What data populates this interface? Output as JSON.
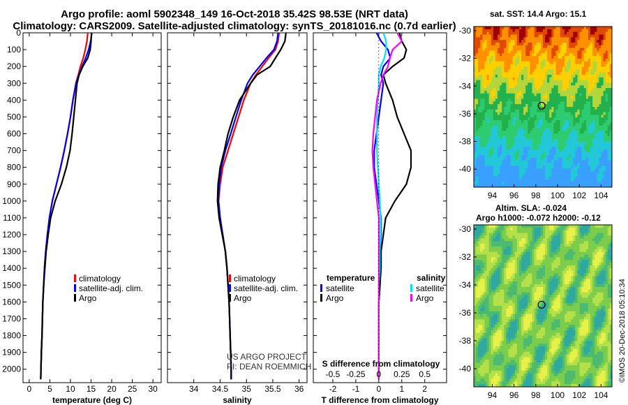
{
  "header": {
    "title_line1": "Argo profile: aoml 5902348_149 16-Oct-2018 35.42S 98.53E (NRT data)",
    "title_line2": "Climatology: CARS2009. Satellite-adjusted climatology: synTS_20181016.nc (0.7d earlier)"
  },
  "sst_map": {
    "title": "sat. SST: 14.4 Argo: 15.1",
    "lon_ticks": [
      "94",
      "96",
      "98",
      "100",
      "102",
      "104"
    ],
    "lat_ticks": [
      "-30",
      "-32",
      "-34",
      "-36",
      "-38",
      "-40"
    ],
    "marker": {
      "lon": 98.53,
      "lat": -35.42
    }
  },
  "sla_map": {
    "title_line1": "Altim. SLA: -0.024",
    "title_line2": "Argo h1000: -0.072 h2000: -0.12",
    "lon_ticks": [
      "94",
      "96",
      "98",
      "100",
      "102",
      "104"
    ],
    "lat_ticks": [
      "-30",
      "-32",
      "-34",
      "-36",
      "-38",
      "-40"
    ],
    "marker": {
      "lon": 98.53,
      "lat": -35.42
    }
  },
  "credit": "©IMOS 20-Dec-2018 05:10:34",
  "colors": {
    "climatology": "#ff0000",
    "satellite": "#0000ff",
    "argo": "#000000",
    "sal_satellite": "#00e0ff",
    "sal_argo": "#ff00ff"
  },
  "chart_data": [
    {
      "type": "line",
      "xlabel": "temperature (deg C)",
      "ylabel": "",
      "xlim": [
        -1.5,
        32
      ],
      "ylim": [
        0,
        2080
      ],
      "xticks": [
        "0",
        "5",
        "10",
        "15",
        "20",
        "25",
        "30"
      ],
      "yticks": [
        "0",
        "100",
        "200",
        "300",
        "400",
        "500",
        "600",
        "700",
        "800",
        "900",
        "1000",
        "1100",
        "1200",
        "1300",
        "1400",
        "1500",
        "1600",
        "1700",
        "1800",
        "1900",
        "2000"
      ],
      "depth": [
        0,
        50,
        100,
        150,
        200,
        250,
        300,
        400,
        500,
        600,
        700,
        800,
        900,
        1000,
        1100,
        1200,
        1300,
        1400,
        1500,
        1600,
        1700,
        1800,
        1900,
        2000,
        2060
      ],
      "series": [
        {
          "name": "climatology",
          "values": [
            14.2,
            14.0,
            13.6,
            13.1,
            12.4,
            11.9,
            11.3,
            10.6,
            10.0,
            9.3,
            8.5,
            7.6,
            6.6,
            5.6,
            4.9,
            4.4,
            4.0,
            3.7,
            3.5,
            3.3,
            3.2,
            3.1,
            2.95,
            2.85,
            2.8
          ]
        },
        {
          "name": "satellite-adj. clim.",
          "values": [
            15.2,
            14.9,
            14.4,
            13.7,
            12.8,
            12.0,
            11.4,
            10.6,
            10.0,
            9.3,
            8.5,
            7.6,
            6.6,
            5.6,
            4.9,
            4.4,
            4.0,
            3.7,
            3.5,
            3.3,
            3.2,
            3.1,
            2.95,
            2.85,
            2.8
          ]
        },
        {
          "name": "Argo",
          "values": [
            15.1,
            15.0,
            14.8,
            14.2,
            13.0,
            12.1,
            11.6,
            11.2,
            10.8,
            10.4,
            9.9,
            9.0,
            7.8,
            6.3,
            5.2,
            4.6,
            4.1,
            3.8,
            3.5,
            3.3,
            3.2,
            3.1,
            2.95,
            2.85,
            2.8
          ]
        }
      ],
      "legend": [
        "climatology",
        "satellite-adj. clim.",
        "Argo"
      ],
      "legend_position": "lower-right"
    },
    {
      "type": "line",
      "xlabel": "salinity",
      "xlim": [
        33.5,
        36.15
      ],
      "ylim": [
        0,
        2080
      ],
      "xticks": [
        "34",
        "34.5",
        "35",
        "35.5",
        "36"
      ],
      "depth": [
        0,
        50,
        100,
        150,
        200,
        250,
        300,
        400,
        500,
        600,
        700,
        800,
        900,
        1000,
        1100,
        1200,
        1300,
        1400,
        1500,
        1600,
        1700,
        1800,
        1900,
        2000,
        2060
      ],
      "series": [
        {
          "name": "climatology",
          "values": [
            35.62,
            35.6,
            35.55,
            35.42,
            35.3,
            35.18,
            35.08,
            34.95,
            34.85,
            34.75,
            34.65,
            34.55,
            34.5,
            34.47,
            34.5,
            34.55,
            34.6,
            34.63,
            34.65,
            34.67,
            34.68,
            34.69,
            34.7,
            34.71,
            34.71
          ]
        },
        {
          "name": "satellite-adj. clim.",
          "values": [
            35.6,
            35.58,
            35.52,
            35.38,
            35.25,
            35.12,
            35.02,
            34.9,
            34.8,
            34.7,
            34.6,
            34.52,
            34.48,
            34.47,
            34.5,
            34.55,
            34.6,
            34.63,
            34.65,
            34.67,
            34.68,
            34.69,
            34.7,
            34.71,
            34.71
          ]
        },
        {
          "name": "Argo",
          "values": [
            35.75,
            35.73,
            35.65,
            35.55,
            35.45,
            35.2,
            35.08,
            34.87,
            34.75,
            34.65,
            34.58,
            34.5,
            34.46,
            34.45,
            34.48,
            34.54,
            34.6,
            34.63,
            34.65,
            34.67,
            34.68,
            34.69,
            34.7,
            34.71,
            34.71
          ]
        }
      ],
      "legend": [
        "climatology",
        "satellite-adj. clim.",
        "Argo"
      ],
      "legend_position": "lower-right",
      "annotation": [
        "US ARGO PROJECT",
        "PI: DEAN ROEMMICH"
      ]
    },
    {
      "type": "line",
      "xlabel": "T difference from climatology",
      "top_label": "S difference from climatology",
      "xlim": [
        -2.85,
        2.95
      ],
      "ylim": [
        0,
        2080
      ],
      "xticks": [
        "-2",
        "-1",
        "0",
        "1",
        "2"
      ],
      "top_ticks": [
        "-0.5",
        "-0.25",
        "0",
        "0.25",
        "0.5"
      ],
      "depth": [
        0,
        50,
        100,
        150,
        200,
        250,
        300,
        400,
        500,
        600,
        700,
        800,
        900,
        1000,
        1100,
        1200,
        1300,
        1400,
        1500,
        1600,
        1700,
        1800,
        1900,
        2000,
        2060
      ],
      "series": [
        {
          "name": "temperature satellite",
          "values": [
            -0.1,
            0.1,
            0.4,
            0.5,
            0.2,
            0.1,
            0.2,
            0.1,
            0.0,
            -0.1,
            -0.2,
            -0.2,
            -0.1,
            0.0,
            0.1,
            0.1,
            0.05,
            0.05,
            0.05,
            0.0,
            0.0,
            0.0,
            0.0,
            0.0,
            0.0
          ]
        },
        {
          "name": "temperature Argo",
          "values": [
            0.9,
            1.0,
            1.2,
            1.1,
            0.6,
            0.2,
            0.3,
            0.6,
            0.8,
            1.1,
            1.4,
            1.4,
            1.2,
            0.7,
            0.3,
            0.2,
            0.1,
            0.1,
            0.05,
            0.0,
            0.0,
            0.0,
            0.0,
            0.0,
            0.0
          ]
        },
        {
          "name": "salinity satellite",
          "values": [
            0.05,
            0.08,
            0.08,
            0.06,
            0.02,
            0.0,
            0.0,
            -0.01,
            -0.02,
            -0.02,
            -0.02,
            -0.01,
            0.0,
            0.01,
            0.02,
            0.02,
            0.01,
            0.01,
            0.0,
            0.0,
            0.0,
            0.0,
            0.0,
            0.0,
            0.0
          ]
        },
        {
          "name": "salinity Argo",
          "values": [
            0.2,
            0.25,
            0.15,
            0.12,
            0.1,
            0.05,
            0.02,
            -0.02,
            -0.04,
            -0.06,
            -0.07,
            -0.06,
            -0.04,
            -0.02,
            0.0,
            0.0,
            0.0,
            0.0,
            0.0,
            0.0,
            0.0,
            0.0,
            0.0,
            0.0,
            0.0
          ]
        }
      ],
      "legend_temperature": {
        "heading": "temperature",
        "items": [
          "satellite",
          "Argo"
        ]
      },
      "legend_salinity": {
        "heading": "salinity",
        "items": [
          "satellite",
          "Argo"
        ]
      }
    }
  ]
}
